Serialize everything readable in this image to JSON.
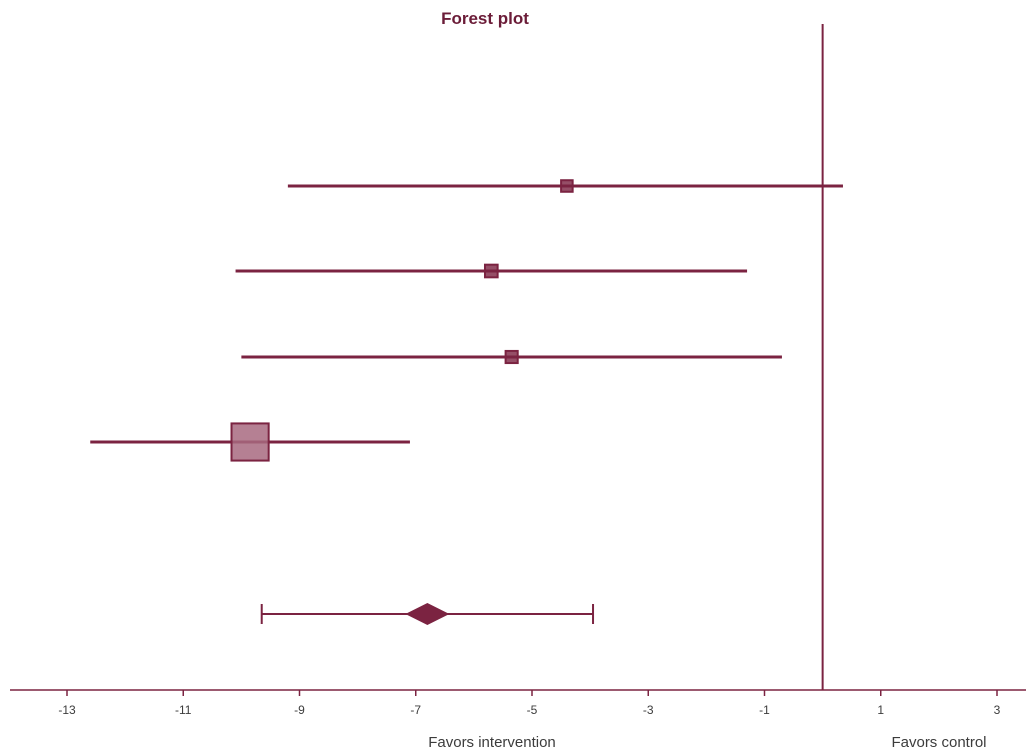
{
  "chart_data": {
    "type": "forest",
    "title": "Forest plot",
    "xlabel": "",
    "ylabel": "",
    "xlim": [
      -14,
      3.5
    ],
    "x_ticks": [
      -13,
      -11,
      -9,
      -7,
      -5,
      -3,
      -1,
      1,
      3
    ],
    "null_line": 0,
    "left_label": "Favors  intervention",
    "right_label": "Favors control",
    "grid": false,
    "studies": [
      {
        "estimate": -4.4,
        "ci_low": -9.2,
        "ci_high": 0.35,
        "weight": 1.0
      },
      {
        "estimate": -5.7,
        "ci_low": -10.1,
        "ci_high": -1.3,
        "weight": 1.2
      },
      {
        "estimate": -5.35,
        "ci_low": -10.0,
        "ci_high": -0.7,
        "weight": 1.1
      },
      {
        "estimate": -9.85,
        "ci_low": -12.6,
        "ci_high": -7.1,
        "weight": 3.0
      }
    ],
    "pooled": {
      "estimate": -6.8,
      "ci_low": -9.65,
      "ci_high": -3.95
    },
    "colors": {
      "mark": "#7b2341",
      "fill_light": "#a86a80",
      "text": "#6b1c38",
      "axis_text": "#3c3c3c"
    }
  }
}
